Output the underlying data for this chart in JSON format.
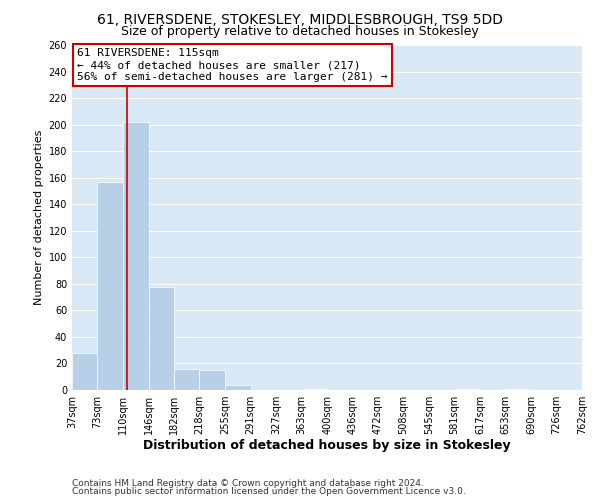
{
  "title1": "61, RIVERSDENE, STOKESLEY, MIDDLESBROUGH, TS9 5DD",
  "title2": "Size of property relative to detached houses in Stokesley",
  "xlabel": "Distribution of detached houses by size in Stokesley",
  "ylabel": "Number of detached properties",
  "bar_edges": [
    37,
    73,
    110,
    146,
    182,
    218,
    255,
    291,
    327,
    363,
    400,
    436,
    472,
    508,
    545,
    581,
    617,
    653,
    690,
    726,
    762
  ],
  "bar_heights": [
    28,
    157,
    202,
    78,
    16,
    15,
    4,
    0,
    0,
    1,
    0,
    0,
    0,
    0,
    0,
    1,
    0,
    1,
    0,
    0
  ],
  "bar_color": "#b8cfe8",
  "grid_color": "#ffffff",
  "bg_color": "#d8e8f4",
  "vline_x": 115,
  "vline_color": "#cc0000",
  "ylim": [
    0,
    260
  ],
  "yticks": [
    0,
    20,
    40,
    60,
    80,
    100,
    120,
    140,
    160,
    180,
    200,
    220,
    240,
    260
  ],
  "annotation_title": "61 RIVERSDENE: 115sqm",
  "annotation_line1": "← 44% of detached houses are smaller (217)",
  "annotation_line2": "56% of semi-detached houses are larger (281) →",
  "footer1": "Contains HM Land Registry data © Crown copyright and database right 2024.",
  "footer2": "Contains public sector information licensed under the Open Government Licence v3.0.",
  "title1_fontsize": 10,
  "title2_fontsize": 9,
  "xlabel_fontsize": 9,
  "ylabel_fontsize": 8,
  "tick_fontsize": 7,
  "annotation_fontsize": 8,
  "footer_fontsize": 6.5
}
